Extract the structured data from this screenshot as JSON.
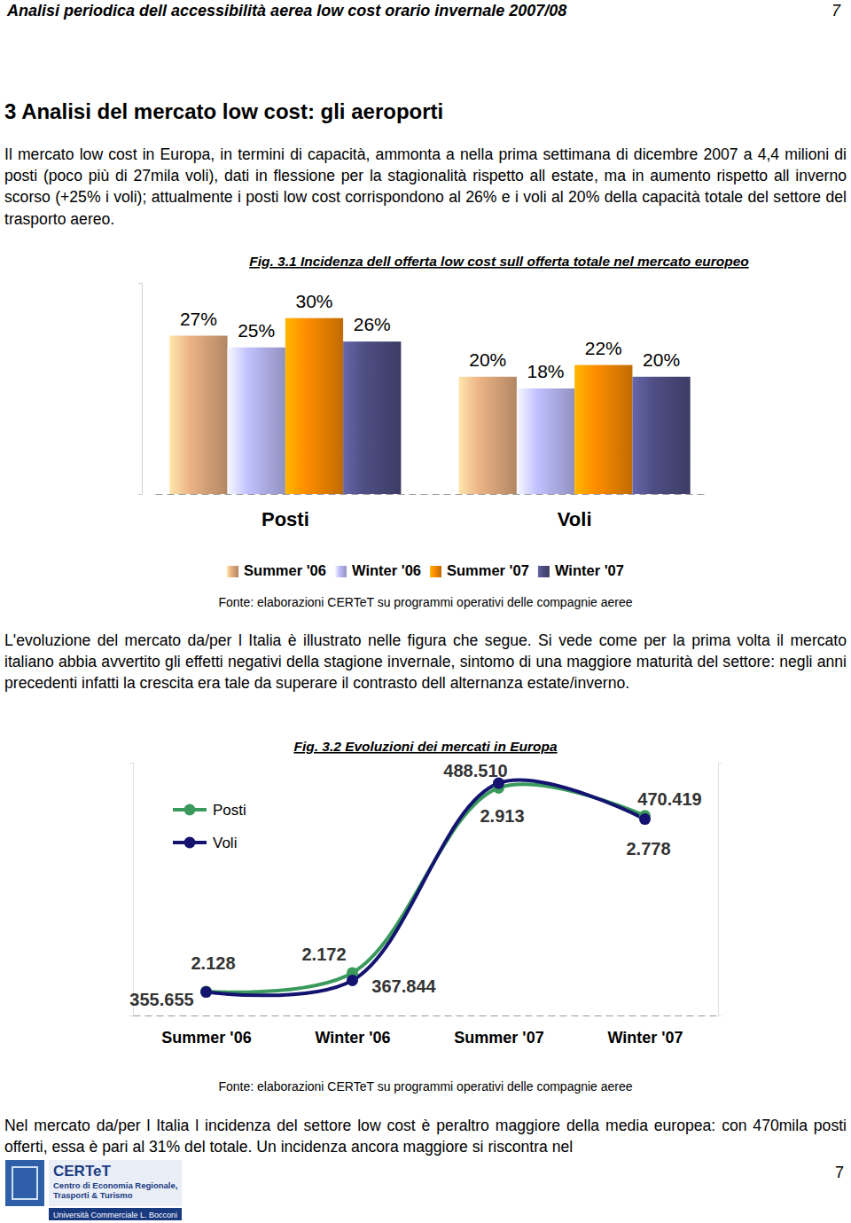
{
  "header": {
    "title": "Analisi periodica dell accessibilità aerea low cost orario invernale 2007/08",
    "page": "7"
  },
  "section_title": "3 Analisi del mercato low cost: gli aeroporti",
  "paragraphs": [
    "Il mercato low cost in Europa, in termini di capacità, ammonta a nella prima settimana di dicembre 2007 a 4,4 milioni di posti (poco più di 27mila voli), dati in flessione per la stagionalità rispetto all estate, ma in aumento rispetto all inverno scorso (+25% i voli); attualmente i posti low cost corrispondono al 26% e i voli al 20% della capacità totale del settore del trasporto aereo.",
    "L'evoluzione del mercato da/per l Italia è illustrato nelle figura che segue. Si vede come per la prima volta il mercato italiano abbia avvertito gli effetti negativi della stagione invernale, sintomo di una maggiore maturità del settore: negli anni precedenti infatti la crescita era tale da superare il contrasto dell alternanza estate/inverno.",
    "Nel mercato da/per l Italia l incidenza del settore low cost è peraltro maggiore della media europea: con 470mila posti offerti, essa è pari al 31% del totale. Un incidenza ancora maggiore si riscontra nel"
  ],
  "figure_sources": [
    "Fonte: elaborazioni CERTeT su programmi operativi delle compagnie aeree",
    "Fonte: elaborazioni CERTeT su programmi operativi delle compagnie aeree"
  ],
  "footer": {
    "page": "7",
    "logo_name": "CERTeT",
    "logo_lines": [
      "Centro di Economia Regionale,",
      "Trasporti & Turismo"
    ],
    "university": "Università Commerciale L. Bocconi"
  },
  "chart_data": [
    {
      "type": "bar",
      "title": "Fig. 3.1 Incidenza dell offerta low cost sull offerta totale nel mercato europeo",
      "categories": [
        "Posti",
        "Voli"
      ],
      "series": [
        {
          "name": "Summer '06",
          "color": "#dca77c",
          "values": [
            27,
            20
          ],
          "value_labels": [
            "27%",
            "20%"
          ]
        },
        {
          "name": "Winter '06",
          "color": "#b4b4ee",
          "values": [
            25,
            18
          ],
          "value_labels": [
            "25%",
            "18%"
          ]
        },
        {
          "name": "Summer '07",
          "color": "#ee8400",
          "values": [
            30,
            22
          ],
          "value_labels": [
            "30%",
            "22%"
          ]
        },
        {
          "name": "Winter '07",
          "color": "#4a4a7c",
          "values": [
            26,
            20
          ],
          "value_labels": [
            "26%",
            "20%"
          ]
        }
      ],
      "ylim": [
        0,
        36
      ],
      "yticks": [
        0,
        36
      ],
      "tick_labels": "x",
      "data_labels": true,
      "legend": "bottom"
    },
    {
      "type": "line",
      "title": "Fig. 3.2 Evoluzioni dei mercati in Europa",
      "categories": [
        "Summer '06",
        "Winter '06",
        "Summer '07",
        "Winter '07"
      ],
      "series": [
        {
          "name": "Posti",
          "color": "#3a9a5c",
          "values": [
            355655,
            367844,
            488510,
            470419
          ],
          "value_labels": [
            "355.655",
            "367.844",
            "488.510",
            "470.419"
          ],
          "marker": "circle",
          "line_style": "smooth"
        },
        {
          "name": "Voli",
          "color": "#141470",
          "axis": "y2",
          "values": [
            2128,
            2172,
            2913,
            2778
          ],
          "value_labels": [
            "2.128",
            "2.172",
            "2.913",
            "2.778"
          ],
          "marker": "circle",
          "line_style": "smooth"
        }
      ],
      "ylim": [
        340000,
        505000
      ],
      "yticks": [
        340000,
        505000
      ],
      "y2lim": [
        2040,
        2990
      ],
      "y2ticks": [
        2040,
        2990
      ],
      "tick_labels": "x",
      "data_labels": true,
      "legend": "upper left"
    }
  ]
}
